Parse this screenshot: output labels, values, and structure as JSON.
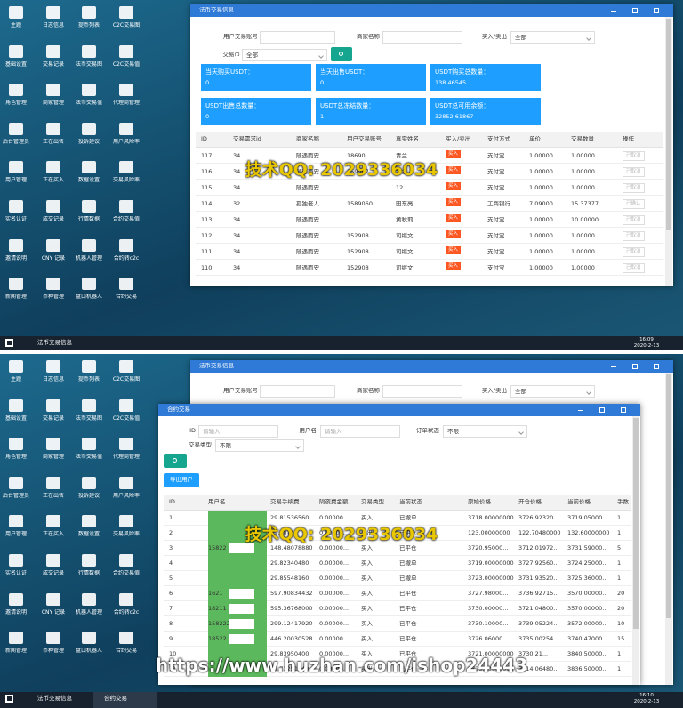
{
  "desktop_icons": [
    "主题",
    "日志信息",
    "提币列表",
    "C2C交易图",
    "基础设置",
    "交易记录",
    "法币交易图",
    "C2C交易值",
    "角色管理",
    "商家管理",
    "法币交易值",
    "代理商管理",
    "后台管理员",
    "正在出售",
    "投诉建议",
    "用户风险率",
    "用户管理",
    "正在买入",
    "数据设置",
    "交易风险率",
    "实名认证",
    "成交记录",
    "行情数据",
    "合约交易值",
    "邀请说明",
    "CNY 记录",
    "机器人管理",
    "合约转c2c",
    "新闻管理",
    "币种管理",
    "盘口机器人",
    "合约交易"
  ],
  "watermark": "技术QQ: 2029336034",
  "watermark_url": "https://www.huzhan.com/ishop24443",
  "top": {
    "window_title": "法币交易信息",
    "filters": [
      {
        "label": "用户交易账号"
      },
      {
        "label": "商家名称"
      },
      {
        "label": "买入/卖出",
        "value": "全部"
      },
      {
        "label": "交易币",
        "value": "全部"
      }
    ],
    "stats": [
      {
        "label": "当天购买USDT：",
        "value": "0"
      },
      {
        "label": "当天出售USDT：",
        "value": "0"
      },
      {
        "label": "USDT购买总数量：",
        "value": "138.46545"
      },
      {
        "label": "USDT出售总数量：",
        "value": "0"
      },
      {
        "label": "USDT总冻结数量：",
        "value": "1"
      },
      {
        "label": "USDT总可用余额：",
        "value": "32852.61867"
      }
    ],
    "table": {
      "headers": [
        "ID",
        "交易需求id",
        "商家名称",
        "用户交易账号",
        "真实姓名",
        "买入/卖出",
        "支付方式",
        "单价",
        "交易数量",
        "操作"
      ],
      "rows": [
        [
          "117",
          "34",
          "随遇而安",
          "18690",
          "青兰",
          "买入",
          "支付宝",
          "1.00000",
          "1.00000",
          "已取消"
        ],
        [
          "116",
          "34",
          "随遇而安",
          "159907",
          "青兰",
          "买入",
          "支付宝",
          "1.00000",
          "1.00000",
          "已取消"
        ],
        [
          "115",
          "34",
          "随遇而安",
          null,
          "12",
          "买入",
          "支付宝",
          "1.00000",
          "1.00000",
          "已取消"
        ],
        [
          "114",
          "32",
          "孤独老人",
          "1589060",
          "田东亮",
          "买入",
          "工商银行",
          "7.09000",
          "15.37377",
          "已确认"
        ],
        [
          "113",
          "34",
          "随遇而安",
          null,
          "黄秋莉",
          "买入",
          "支付宝",
          "1.00000",
          "10.00000",
          "已取消"
        ],
        [
          "112",
          "34",
          "随遇而安",
          "152908",
          "司继文",
          "买入",
          "支付宝",
          "1.00000",
          "1.00000",
          "已取消"
        ],
        [
          "111",
          "34",
          "随遇而安",
          "152908",
          "司继文",
          "买入",
          "支付宝",
          "1.00000",
          "1.00000",
          "已取消"
        ],
        [
          "110",
          "34",
          "随遇而安",
          "152908",
          "司继文",
          "买入",
          "支付宝",
          "1.00000",
          "1.00000",
          "已取消"
        ]
      ]
    },
    "taskbar": {
      "items": [
        "法币交易信息"
      ],
      "time": "16:09",
      "date": "2020-2-13"
    }
  },
  "bottom": {
    "background_title": "法币交易信息",
    "window_title": "合约交易",
    "filters": [
      {
        "label": "ID",
        "placeholder": "请输入"
      },
      {
        "label": "用户名",
        "placeholder": "请输入"
      },
      {
        "label": "订单状态",
        "value": "不限"
      },
      {
        "label": "交易类型",
        "value": "不限"
      }
    ],
    "export_button": "导出用户",
    "table": {
      "headers": [
        "ID",
        "用户名",
        "交易手续费",
        "隔夜费金额",
        "交易类型",
        "当前状态",
        "原始价格",
        "开仓价格",
        "当前价格",
        "手数"
      ],
      "rows": [
        [
          "1",
          null,
          "29.81536560",
          "0.00000...",
          "买入",
          "已撤单",
          "3718.00000000",
          "3726.92320...",
          "3719.05000...",
          "1"
        ],
        [
          "2",
          null,
          "29.78??",
          "0.00000...",
          "卖出",
          "已平仓",
          "123.00000000",
          "122.70480000",
          "132.60000000",
          "1"
        ],
        [
          "3",
          "15822",
          "148.48078880",
          "0.00000...",
          "买入",
          "已平仓",
          "3720.95000...",
          "3712.01972...",
          "3731.59000...",
          "5"
        ],
        [
          "4",
          null,
          "29.82340480",
          "0.00000...",
          "买入",
          "已撤单",
          "3719.00000000",
          "3727.92560...",
          "3724.25000...",
          "1"
        ],
        [
          "5",
          null,
          "29.85548160",
          "0.00000...",
          "买入",
          "已撤单",
          "3723.00000000",
          "3731.93520...",
          "3725.36000...",
          "1"
        ],
        [
          "6",
          "1621",
          "597.90834432",
          "0.00000...",
          "买入",
          "已平仓",
          "3727.98000...",
          "3736.92715...",
          "3570.00000...",
          "20"
        ],
        [
          "7",
          "18211",
          "595.36768000",
          "0.00000...",
          "买入",
          "已平仓",
          "3730.00000...",
          "3721.04800...",
          "3570.00000...",
          "20"
        ],
        [
          "8",
          "158222",
          "299.12417920",
          "0.00000...",
          "买入",
          "已平仓",
          "3730.10000...",
          "3739.05224...",
          "3572.00000...",
          "10"
        ],
        [
          "9",
          "18522",
          "446.20030528",
          "0.00000...",
          "买入",
          "已平仓",
          "3726.06000...",
          "3735.00254...",
          "3740.47000...",
          "15"
        ],
        [
          "10",
          null,
          "29.83950400",
          "0.00000...",
          "买入",
          "已平仓",
          "3721.00000000",
          "3730.21...",
          "3840.50000...",
          "1"
        ],
        [
          "11",
          null,
          "29.71251840",
          "0.00000...",
          "卖出",
          "已平仓",
          "3723.00000000",
          "3714.06480...",
          "3836.50000...",
          "1"
        ]
      ]
    },
    "taskbar": {
      "items": [
        "法币交易信息",
        "合约交易"
      ],
      "time": "16:10",
      "date": "2020-2-13"
    }
  }
}
